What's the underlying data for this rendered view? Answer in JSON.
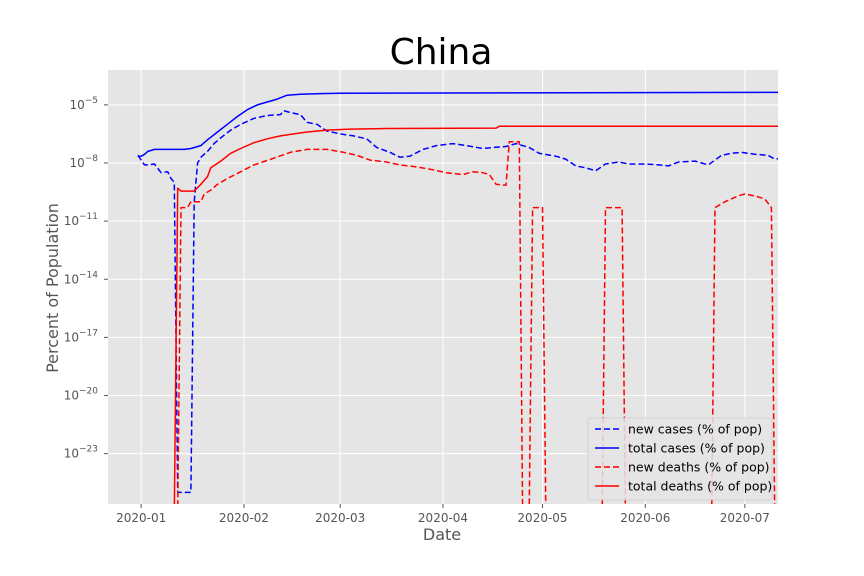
{
  "chart_data": {
    "type": "line",
    "title": "China",
    "xlabel": "Date",
    "ylabel": "Percent of Population",
    "x_ticks": [
      "2020-01",
      "2020-02",
      "2020-03",
      "2020-04",
      "2020-05",
      "2020-06",
      "2020-07"
    ],
    "y_ticks": [
      {
        "exp": -23,
        "label": "10",
        "sup": "−23"
      },
      {
        "exp": -20,
        "label": "10",
        "sup": "−20"
      },
      {
        "exp": -17,
        "label": "10",
        "sup": "−17"
      },
      {
        "exp": -14,
        "label": "10",
        "sup": "−14"
      },
      {
        "exp": -11,
        "label": "10",
        "sup": "−11"
      },
      {
        "exp": -8,
        "label": "10",
        "sup": "−8"
      },
      {
        "exp": -5,
        "label": "10",
        "sup": "−5"
      }
    ],
    "xlim": [
      "2019-12-22",
      "2020-07-11"
    ],
    "ylim_log10": [
      -25.6,
      -3.2
    ],
    "y_scale": "log",
    "grid": true,
    "legend_position": "lower right",
    "colors": {
      "background": "#e5e5e5",
      "grid": "#ffffff",
      "blue": "#0000ff",
      "red": "#ff0000"
    },
    "series": [
      {
        "name": "new cases (% of pop)",
        "color": "#0000ff",
        "dashed": true,
        "points": [
          [
            "2019-12-31",
            -7.6
          ],
          [
            "2020-01-02",
            -8.1
          ],
          [
            "2020-01-03",
            -8.1
          ],
          [
            "2020-01-05",
            -8.05
          ],
          [
            "2020-01-07",
            -8.5
          ],
          [
            "2020-01-09",
            -8.45
          ],
          [
            "2020-01-10",
            -8.8
          ],
          [
            "2020-01-11",
            -9.0
          ],
          [
            "2020-01-12",
            -25.0
          ],
          [
            "2020-01-16",
            -25.0
          ],
          [
            "2020-01-17",
            -10.0
          ],
          [
            "2020-01-18",
            -8.0
          ],
          [
            "2020-01-19",
            -7.7
          ],
          [
            "2020-01-21",
            -7.4
          ],
          [
            "2020-01-23",
            -7.0
          ],
          [
            "2020-01-25",
            -6.7
          ],
          [
            "2020-01-28",
            -6.3
          ],
          [
            "2020-01-31",
            -6.0
          ],
          [
            "2020-02-04",
            -5.7
          ],
          [
            "2020-02-08",
            -5.55
          ],
          [
            "2020-02-12",
            -5.5
          ],
          [
            "2020-02-13",
            -5.3
          ],
          [
            "2020-02-15",
            -5.4
          ],
          [
            "2020-02-18",
            -5.5
          ],
          [
            "2020-02-20",
            -5.9
          ],
          [
            "2020-02-23",
            -6.0
          ],
          [
            "2020-02-26",
            -6.35
          ],
          [
            "2020-03-01",
            -6.5
          ],
          [
            "2020-03-05",
            -6.6
          ],
          [
            "2020-03-09",
            -6.75
          ],
          [
            "2020-03-12",
            -7.2
          ],
          [
            "2020-03-16",
            -7.45
          ],
          [
            "2020-03-19",
            -7.7
          ],
          [
            "2020-03-22",
            -7.65
          ],
          [
            "2020-03-26",
            -7.3
          ],
          [
            "2020-03-30",
            -7.1
          ],
          [
            "2020-04-04",
            -7.0
          ],
          [
            "2020-04-08",
            -7.1
          ],
          [
            "2020-04-13",
            -7.25
          ],
          [
            "2020-04-16",
            -7.2
          ],
          [
            "2020-04-20",
            -7.15
          ],
          [
            "2020-04-23",
            -7.0
          ],
          [
            "2020-04-27",
            -7.2
          ],
          [
            "2020-04-30",
            -7.5
          ],
          [
            "2020-05-05",
            -7.65
          ],
          [
            "2020-05-08",
            -7.8
          ],
          [
            "2020-05-11",
            -8.15
          ],
          [
            "2020-05-14",
            -8.25
          ],
          [
            "2020-05-17",
            -8.4
          ],
          [
            "2020-05-20",
            -8.05
          ],
          [
            "2020-05-24",
            -7.95
          ],
          [
            "2020-05-27",
            -8.05
          ],
          [
            "2020-06-01",
            -8.05
          ],
          [
            "2020-06-05",
            -8.1
          ],
          [
            "2020-06-08",
            -8.15
          ],
          [
            "2020-06-11",
            -7.95
          ],
          [
            "2020-06-16",
            -7.9
          ],
          [
            "2020-06-20",
            -8.1
          ],
          [
            "2020-06-24",
            -7.6
          ],
          [
            "2020-06-27",
            -7.5
          ],
          [
            "2020-06-30",
            -7.45
          ],
          [
            "2020-07-04",
            -7.55
          ],
          [
            "2020-07-08",
            -7.6
          ],
          [
            "2020-07-10",
            -7.8
          ],
          [
            "2020-07-13",
            -7.75
          ]
        ]
      },
      {
        "name": "total cases (% of pop)",
        "color": "#0000ff",
        "dashed": false,
        "points": [
          [
            "2019-12-31",
            -7.65
          ],
          [
            "2020-01-01",
            -7.65
          ],
          [
            "2020-01-02",
            -7.55
          ],
          [
            "2020-01-03",
            -7.4
          ],
          [
            "2020-01-05",
            -7.3
          ],
          [
            "2020-01-07",
            -7.3
          ],
          [
            "2020-01-10",
            -7.3
          ],
          [
            "2020-01-14",
            -7.3
          ],
          [
            "2020-01-16",
            -7.25
          ],
          [
            "2020-01-19",
            -7.1
          ],
          [
            "2020-01-21",
            -6.8
          ],
          [
            "2020-01-24",
            -6.4
          ],
          [
            "2020-01-27",
            -6.0
          ],
          [
            "2020-01-30",
            -5.6
          ],
          [
            "2020-02-02",
            -5.25
          ],
          [
            "2020-02-05",
            -5.0
          ],
          [
            "2020-02-08",
            -4.85
          ],
          [
            "2020-02-11",
            -4.7
          ],
          [
            "2020-02-14",
            -4.5
          ],
          [
            "2020-02-18",
            -4.45
          ],
          [
            "2020-02-24",
            -4.42
          ],
          [
            "2020-03-01",
            -4.4
          ],
          [
            "2020-07-13",
            -4.35
          ]
        ]
      },
      {
        "name": "new deaths (% of pop)",
        "color": "#ff0000",
        "dashed": true,
        "points": [
          [
            "2020-01-11",
            -26
          ],
          [
            "2020-01-12",
            -26
          ],
          [
            "2020-01-13",
            -10.3
          ],
          [
            "2020-01-15",
            -10.3
          ],
          [
            "2020-01-16",
            -10.0
          ],
          [
            "2020-01-19",
            -10.0
          ],
          [
            "2020-01-20",
            -9.6
          ],
          [
            "2020-01-22",
            -9.4
          ],
          [
            "2020-01-24",
            -9.1
          ],
          [
            "2020-01-27",
            -8.8
          ],
          [
            "2020-01-31",
            -8.45
          ],
          [
            "2020-02-04",
            -8.1
          ],
          [
            "2020-02-10",
            -7.75
          ],
          [
            "2020-02-15",
            -7.45
          ],
          [
            "2020-02-20",
            -7.3
          ],
          [
            "2020-02-26",
            -7.3
          ],
          [
            "2020-03-02",
            -7.45
          ],
          [
            "2020-03-06",
            -7.6
          ],
          [
            "2020-03-10",
            -7.85
          ],
          [
            "2020-03-15",
            -7.95
          ],
          [
            "2020-03-19",
            -8.1
          ],
          [
            "2020-03-24",
            -8.2
          ],
          [
            "2020-03-29",
            -8.35
          ],
          [
            "2020-04-02",
            -8.5
          ],
          [
            "2020-04-07",
            -8.6
          ],
          [
            "2020-04-10",
            -8.45
          ],
          [
            "2020-04-13",
            -8.5
          ],
          [
            "2020-04-15",
            -8.6
          ],
          [
            "2020-04-17",
            -9.1
          ],
          [
            "2020-04-20",
            -9.15
          ],
          [
            "2020-04-21",
            -6.9
          ],
          [
            "2020-04-24",
            -6.9
          ],
          [
            "2020-04-25",
            -26
          ],
          [
            "2020-04-27",
            -26
          ],
          [
            "2020-04-28",
            -10.3
          ],
          [
            "2020-05-01",
            -10.3
          ],
          [
            "2020-05-02",
            -26
          ],
          [
            "2020-05-19",
            -26
          ],
          [
            "2020-05-20",
            -10.3
          ],
          [
            "2020-05-25",
            -10.3
          ],
          [
            "2020-05-26",
            -26
          ],
          [
            "2020-06-21",
            -26
          ],
          [
            "2020-06-22",
            -10.3
          ],
          [
            "2020-06-25",
            -10.0
          ],
          [
            "2020-06-29",
            -9.7
          ],
          [
            "2020-07-01",
            -9.6
          ],
          [
            "2020-07-04",
            -9.7
          ],
          [
            "2020-07-07",
            -9.85
          ],
          [
            "2020-07-09",
            -10.3
          ],
          [
            "2020-07-10",
            -26
          ]
        ]
      },
      {
        "name": "total deaths (% of pop)",
        "color": "#ff0000",
        "dashed": false,
        "points": [
          [
            "2020-01-10",
            -26
          ],
          [
            "2020-01-11",
            -26
          ],
          [
            "2020-01-12",
            -9.3
          ],
          [
            "2020-01-13",
            -9.45
          ],
          [
            "2020-01-17",
            -9.45
          ],
          [
            "2020-01-19",
            -9.1
          ],
          [
            "2020-01-21",
            -8.7
          ],
          [
            "2020-01-22",
            -8.25
          ],
          [
            "2020-01-25",
            -7.9
          ],
          [
            "2020-01-28",
            -7.5
          ],
          [
            "2020-01-31",
            -7.25
          ],
          [
            "2020-02-04",
            -6.95
          ],
          [
            "2020-02-08",
            -6.75
          ],
          [
            "2020-02-12",
            -6.6
          ],
          [
            "2020-02-16",
            -6.5
          ],
          [
            "2020-02-20",
            -6.4
          ],
          [
            "2020-02-26",
            -6.3
          ],
          [
            "2020-03-04",
            -6.25
          ],
          [
            "2020-03-15",
            -6.22
          ],
          [
            "2020-04-17",
            -6.2
          ],
          [
            "2020-04-18",
            -6.1
          ],
          [
            "2020-07-13",
            -6.1
          ]
        ]
      }
    ]
  }
}
